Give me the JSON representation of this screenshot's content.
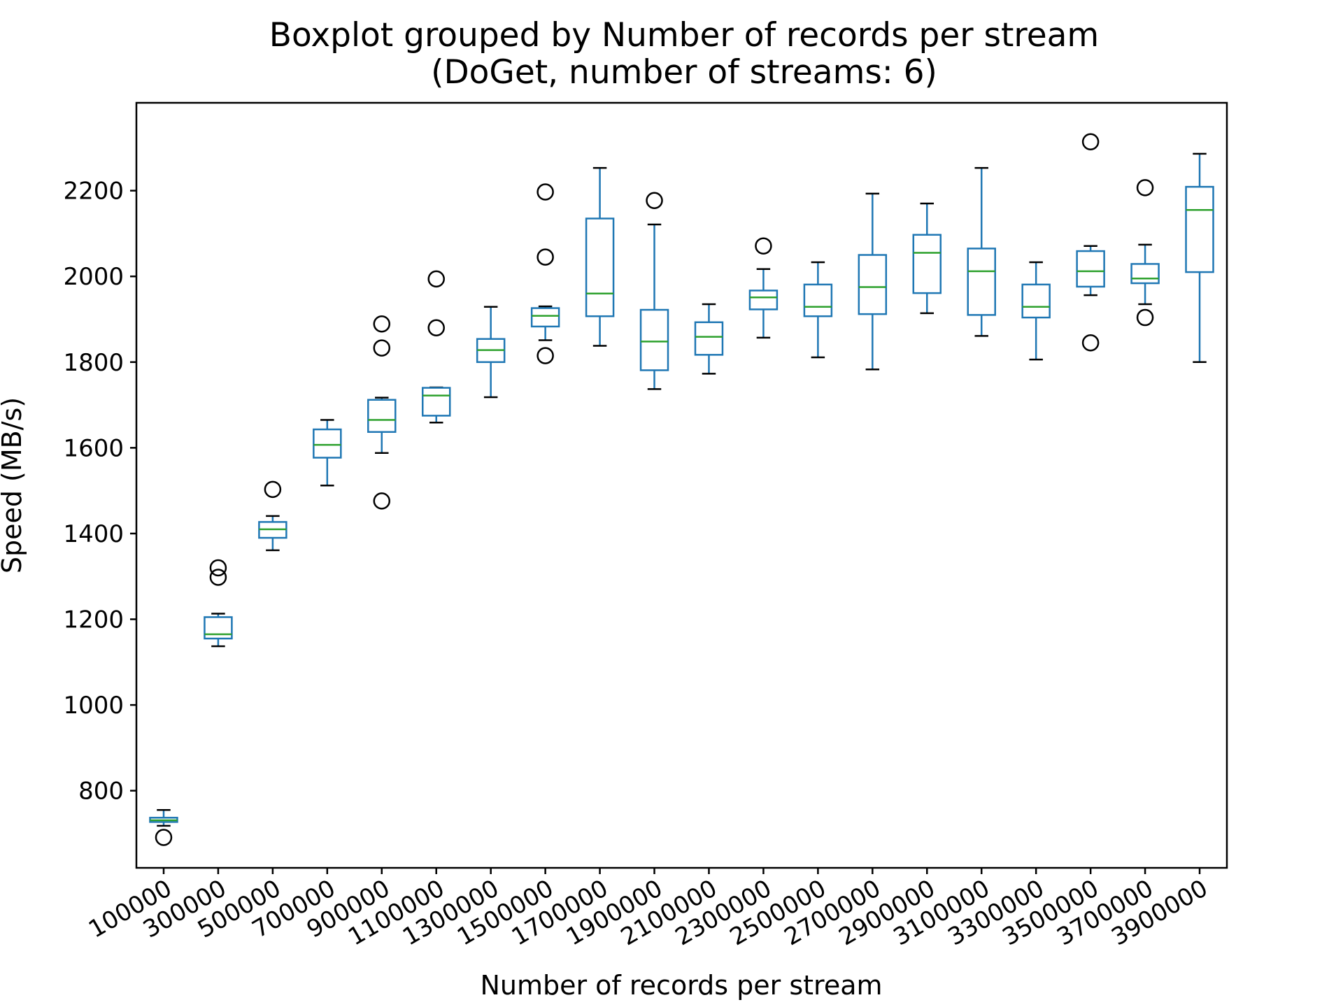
{
  "chart_data": {
    "type": "box",
    "title": "Boxplot grouped by Number of records per stream",
    "subtitle": "(DoGet, number of streams: 6)",
    "xlabel": "Number of records per stream",
    "ylabel": "Speed (MB/s)",
    "ylim": [
      620,
      2405
    ],
    "y_ticks": [
      "800",
      "1000",
      "1200",
      "1400",
      "1600",
      "1800",
      "2000",
      "2200"
    ],
    "grid": false,
    "colors": {
      "box": "#1f77b4",
      "median": "#2ca02c",
      "outlier": "#000000",
      "cap": "#000000"
    },
    "categories": [
      "100000",
      "300000",
      "500000",
      "700000",
      "900000",
      "1100000",
      "1300000",
      "1500000",
      "1700000",
      "1900000",
      "2100000",
      "2300000",
      "2500000",
      "2700000",
      "2900000",
      "3100000",
      "3300000",
      "3500000",
      "3700000",
      "3900000"
    ],
    "boxes": [
      {
        "category": "100000",
        "whisker_low": 718,
        "q1": 727,
        "median": 731,
        "q3": 737,
        "whisker_high": 755,
        "outliers": [
          691
        ]
      },
      {
        "category": "300000",
        "whisker_low": 1137,
        "q1": 1155,
        "median": 1165,
        "q3": 1205,
        "whisker_high": 1213,
        "outliers": [
          1298,
          1320
        ]
      },
      {
        "category": "500000",
        "whisker_low": 1361,
        "q1": 1390,
        "median": 1410,
        "q3": 1427,
        "whisker_high": 1441,
        "outliers": [
          1503
        ]
      },
      {
        "category": "700000",
        "whisker_low": 1512,
        "q1": 1577,
        "median": 1607,
        "q3": 1643,
        "whisker_high": 1665,
        "outliers": []
      },
      {
        "category": "900000",
        "whisker_low": 1588,
        "q1": 1637,
        "median": 1665,
        "q3": 1712,
        "whisker_high": 1717,
        "outliers": [
          1476,
          1833,
          1889
        ]
      },
      {
        "category": "1100000",
        "whisker_low": 1659,
        "q1": 1675,
        "median": 1722,
        "q3": 1740,
        "whisker_high": 1741,
        "outliers": [
          1880,
          1994
        ]
      },
      {
        "category": "1300000",
        "whisker_low": 1718,
        "q1": 1800,
        "median": 1828,
        "q3": 1854,
        "whisker_high": 1929,
        "outliers": []
      },
      {
        "category": "1500000",
        "whisker_low": 1851,
        "q1": 1883,
        "median": 1908,
        "q3": 1926,
        "whisker_high": 1930,
        "outliers": [
          1815,
          2045,
          2197
        ]
      },
      {
        "category": "1700000",
        "whisker_low": 1838,
        "q1": 1907,
        "median": 1960,
        "q3": 2135,
        "whisker_high": 2253,
        "outliers": []
      },
      {
        "category": "1900000",
        "whisker_low": 1737,
        "q1": 1781,
        "median": 1848,
        "q3": 1922,
        "whisker_high": 2121,
        "outliers": [
          2177
        ]
      },
      {
        "category": "2100000",
        "whisker_low": 1773,
        "q1": 1817,
        "median": 1859,
        "q3": 1893,
        "whisker_high": 1935,
        "outliers": []
      },
      {
        "category": "2300000",
        "whisker_low": 1857,
        "q1": 1923,
        "median": 1951,
        "q3": 1967,
        "whisker_high": 2017,
        "outliers": [
          2071
        ]
      },
      {
        "category": "2500000",
        "whisker_low": 1811,
        "q1": 1907,
        "median": 1929,
        "q3": 1981,
        "whisker_high": 2033,
        "outliers": []
      },
      {
        "category": "2700000",
        "whisker_low": 1783,
        "q1": 1912,
        "median": 1975,
        "q3": 2050,
        "whisker_high": 2193,
        "outliers": []
      },
      {
        "category": "2900000",
        "whisker_low": 1914,
        "q1": 1961,
        "median": 2055,
        "q3": 2097,
        "whisker_high": 2170,
        "outliers": []
      },
      {
        "category": "3100000",
        "whisker_low": 1861,
        "q1": 1910,
        "median": 2012,
        "q3": 2065,
        "whisker_high": 2253,
        "outliers": []
      },
      {
        "category": "3300000",
        "whisker_low": 1806,
        "q1": 1904,
        "median": 1929,
        "q3": 1981,
        "whisker_high": 2033,
        "outliers": []
      },
      {
        "category": "3500000",
        "whisker_low": 1956,
        "q1": 1976,
        "median": 2012,
        "q3": 2059,
        "whisker_high": 2071,
        "outliers": [
          1845,
          2314
        ]
      },
      {
        "category": "3700000",
        "whisker_low": 1935,
        "q1": 1984,
        "median": 1995,
        "q3": 2029,
        "whisker_high": 2074,
        "outliers": [
          1904,
          2207
        ]
      },
      {
        "category": "3900000",
        "whisker_low": 1800,
        "q1": 2010,
        "median": 2155,
        "q3": 2209,
        "whisker_high": 2286,
        "outliers": []
      }
    ]
  }
}
